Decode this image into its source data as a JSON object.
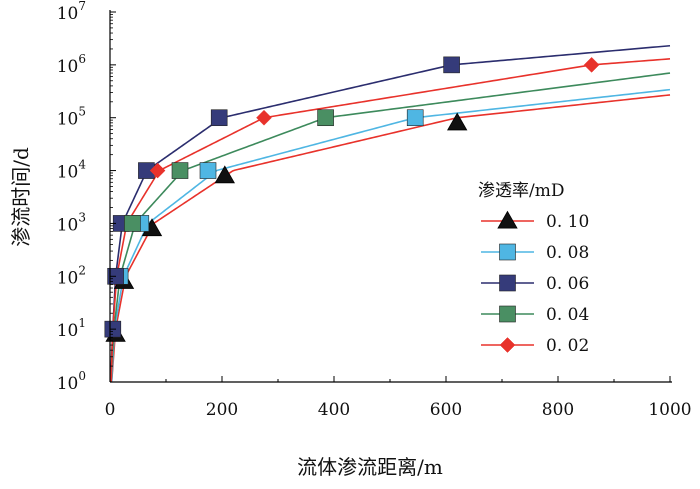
{
  "chart_data": {
    "type": "scatter",
    "xlabel": "流体渗流距离/m",
    "ylabel": "渗流时间/d",
    "xlim": [
      0,
      1000
    ],
    "ylim_log10": [
      0,
      7
    ],
    "y_scale": "log",
    "x_ticks": [
      "0",
      "200",
      "400",
      "600",
      "800",
      "1000"
    ],
    "y_ticks": [
      {
        "base": "10",
        "exp": "0"
      },
      {
        "base": "10",
        "exp": "1"
      },
      {
        "base": "10",
        "exp": "2"
      },
      {
        "base": "10",
        "exp": "3"
      },
      {
        "base": "10",
        "exp": "4"
      },
      {
        "base": "10",
        "exp": "5"
      },
      {
        "base": "10",
        "exp": "6"
      },
      {
        "base": "10",
        "exp": "7"
      }
    ],
    "legend_title": "渗透率/mD",
    "legend_position": "right",
    "series": [
      {
        "name": "0. 10",
        "marker": "triangle",
        "color": "#e8322b",
        "marker_color": "#111111",
        "points": [
          [
            10,
            8
          ],
          [
            25,
            80
          ],
          [
            75,
            800
          ],
          [
            205,
            8000
          ],
          [
            620,
            80000
          ]
        ],
        "fit": [
          [
            3,
            1
          ],
          [
            10,
            10
          ],
          [
            28,
            100
          ],
          [
            78,
            1000
          ],
          [
            220,
            10000
          ],
          [
            620,
            100000
          ],
          [
            1000,
            270000
          ]
        ]
      },
      {
        "name": "0. 08",
        "marker": "square",
        "color": "#4fb6e3",
        "marker_color": "#4fb6e3",
        "points": [
          [
            18,
            100
          ],
          [
            55,
            1000
          ],
          [
            175,
            10000
          ],
          [
            545,
            100000
          ]
        ],
        "fit": [
          [
            3,
            1
          ],
          [
            8,
            10
          ],
          [
            24,
            100
          ],
          [
            68,
            1000
          ],
          [
            190,
            10000
          ],
          [
            545,
            100000
          ],
          [
            1000,
            340000
          ]
        ]
      },
      {
        "name": "0. 06",
        "marker": "square",
        "color": "#2b2d6e",
        "marker_color": "#353b7a",
        "points": [
          [
            5,
            10
          ],
          [
            10,
            100
          ],
          [
            20,
            1000
          ],
          [
            65,
            10000
          ],
          [
            195,
            100000
          ],
          [
            610,
            1000000
          ]
        ],
        "fit": [
          [
            1,
            1
          ],
          [
            5,
            10
          ],
          [
            10,
            100
          ],
          [
            22,
            1000
          ],
          [
            66,
            10000
          ],
          [
            200,
            100000
          ],
          [
            610,
            1000000
          ],
          [
            1000,
            2300000
          ]
        ]
      },
      {
        "name": "0. 04",
        "marker": "square",
        "color": "#3d8a5c",
        "marker_color": "#4a8f63",
        "points": [
          [
            40,
            1000
          ],
          [
            125,
            10000
          ],
          [
            385,
            100000
          ]
        ],
        "fit": [
          [
            2,
            1
          ],
          [
            7,
            10
          ],
          [
            18,
            100
          ],
          [
            45,
            1000
          ],
          [
            130,
            10000
          ],
          [
            385,
            100000
          ],
          [
            1000,
            700000
          ]
        ]
      },
      {
        "name": "0. 02",
        "marker": "diamond",
        "color": "#e8322b",
        "marker_color": "#e8322b",
        "points": [
          [
            85,
            10000
          ],
          [
            275,
            100000
          ],
          [
            860,
            1000000
          ]
        ],
        "fit": [
          [
            2,
            1
          ],
          [
            5,
            10
          ],
          [
            12,
            100
          ],
          [
            30,
            1000
          ],
          [
            88,
            10000
          ],
          [
            275,
            100000
          ],
          [
            860,
            1000000
          ],
          [
            1000,
            1300000
          ]
        ]
      }
    ]
  }
}
